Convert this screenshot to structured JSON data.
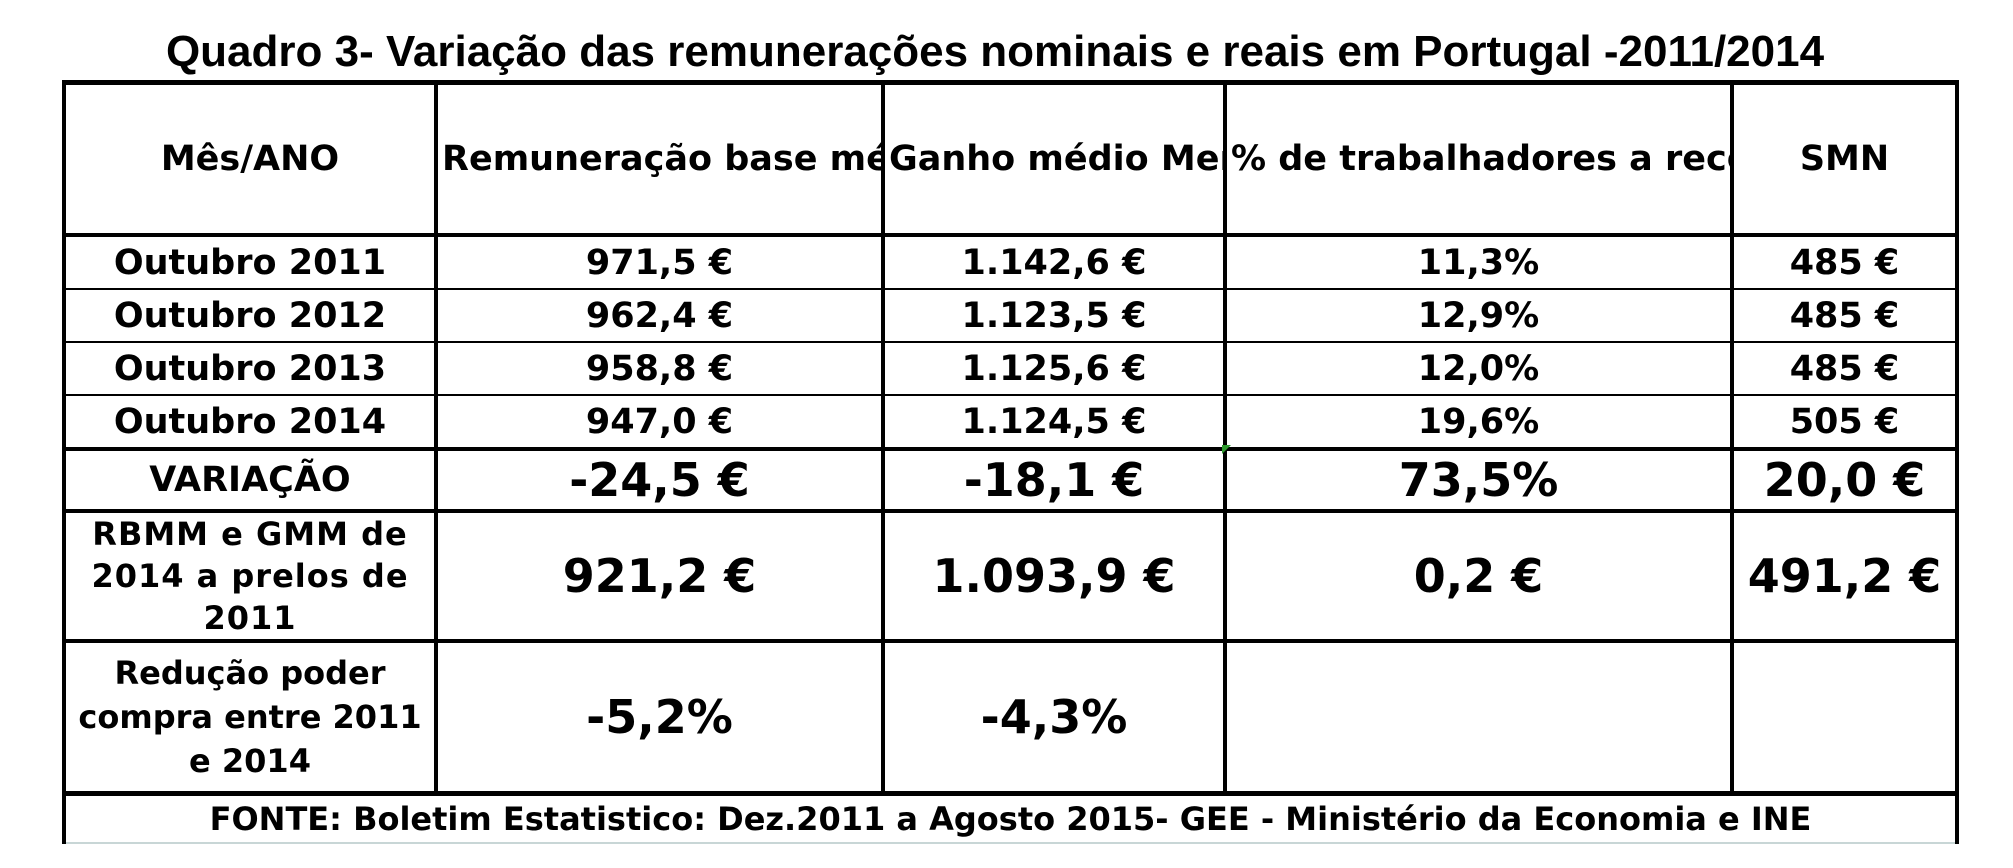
{
  "title": "Quadro 3- Variação das remunerações nominais e reais em Portugal -2011/2014",
  "table": {
    "headers": [
      "Mês/ANO",
      "Remuneração base média Mensal",
      "Ganho médio Mensal",
      "% de trabalhadores a receber o salário minimo nacional",
      "SMN"
    ],
    "rows": [
      [
        "Outubro 2011",
        "971,5 €",
        "1.142,6 €",
        "11,3%",
        "485 €"
      ],
      [
        "Outubro 2012",
        "962,4 €",
        "1.123,5 €",
        "12,9%",
        "485 €"
      ],
      [
        "Outubro 2013",
        "958,8 €",
        "1.125,6 €",
        "12,0%",
        "485 €"
      ],
      [
        "Outubro 2014",
        "947,0 €",
        "1.124,5 €",
        "19,6%",
        "505 €"
      ]
    ],
    "variation": [
      "VARIAÇÃO",
      "-24,5 €",
      "-18,1 €",
      "73,5%",
      "20,0 €"
    ],
    "rbmm": [
      "RBMM e GMM de 2014 a prelos de 2011",
      "921,2 €",
      "1.093,9 €",
      "0,2 €",
      "491,2 €"
    ],
    "reduction": [
      "Redução poder compra entre 2011 e 2014",
      "-5,2%",
      "-4,3%",
      "",
      ""
    ]
  },
  "source": "FONTE: Boletim Estatistico: Dez.2011 a Agosto 2015- GEE - Ministério da Economia e INE",
  "colors": {
    "border": "#000000",
    "source_border": "#c8d6d6",
    "cell_marker": "#2e9a2e"
  }
}
